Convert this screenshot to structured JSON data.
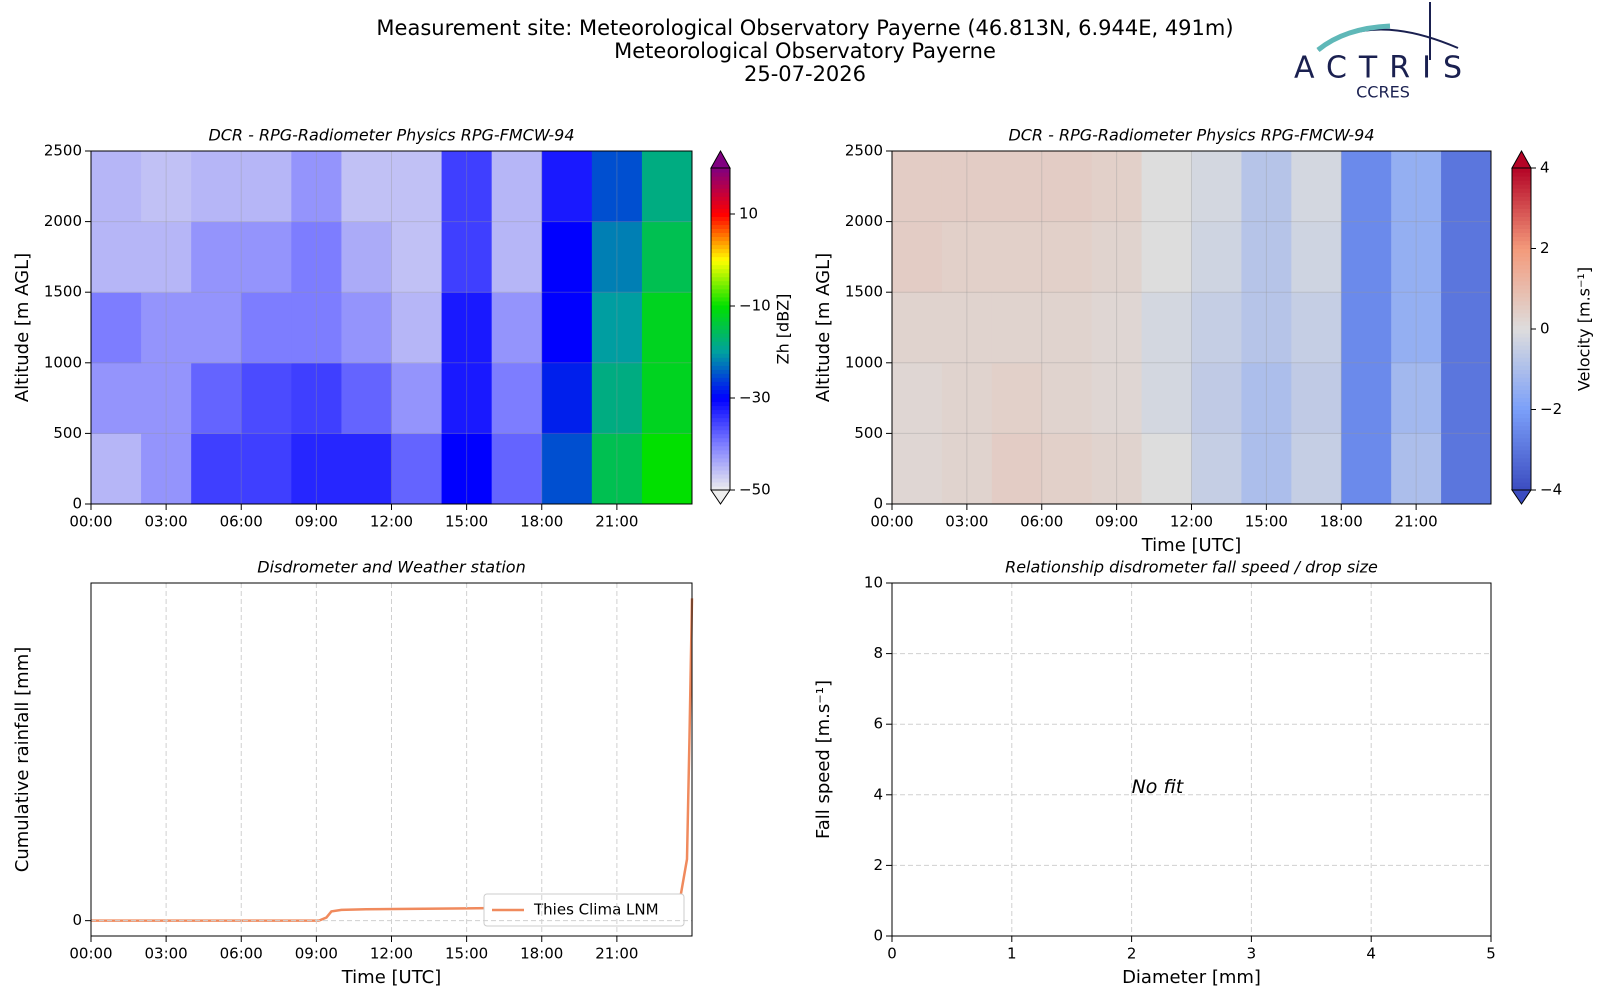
{
  "header": {
    "title_lines": [
      "Measurement site: Meteorological Observatory Payerne (46.813N, 6.944E, 491m)",
      "Meteorological Observatory Payerne",
      "25-07-2026"
    ]
  },
  "logo": {
    "name": "ACTRIS",
    "subtitle": "CCRES"
  },
  "chart_data": [
    {
      "type": "heatmap",
      "title": "DCR - RPG-Radiometer Physics RPG-FMCW-94",
      "y_label": "Altitude [m AGL]",
      "colorbar_label": "Zh [dBZ]",
      "colormap": "rainbow",
      "clim": [
        -50,
        20
      ],
      "cticks": [
        {
          "value": -50,
          "label": "−50"
        },
        {
          "value": -30,
          "label": "−30"
        },
        {
          "value": -10,
          "label": "−10"
        },
        10
      ],
      "xbins": [
        0,
        2,
        4,
        6,
        8,
        10,
        12,
        14,
        16,
        18,
        20,
        22,
        24
      ],
      "ybins": [
        0,
        500,
        1000,
        1500,
        2000,
        2500
      ],
      "z": [
        [
          -45,
          -42,
          -35,
          -35,
          -33,
          -33,
          -38,
          -30,
          -38,
          -25,
          -15,
          -10
        ],
        [
          -42,
          -42,
          -38,
          -36,
          -35,
          -38,
          -42,
          -32,
          -40,
          -28,
          -18,
          -12
        ],
        [
          -40,
          -42,
          -42,
          -40,
          -40,
          -42,
          -45,
          -32,
          -42,
          -30,
          -20,
          -12
        ],
        [
          -45,
          -45,
          -42,
          -42,
          -40,
          -44,
          -46,
          -35,
          -45,
          -30,
          -22,
          -15
        ],
        [
          -45,
          -46,
          -45,
          -45,
          -42,
          -46,
          -46,
          -35,
          -45,
          -32,
          -25,
          -18
        ]
      ],
      "xlim": [
        0,
        24
      ],
      "ylim": [
        0,
        2500
      ],
      "xticks": [
        {
          "value": 0,
          "label": "00:00"
        },
        {
          "value": 3,
          "label": "03:00"
        },
        {
          "value": 6,
          "label": "06:00"
        },
        {
          "value": 9,
          "label": "09:00"
        },
        {
          "value": 12,
          "label": "12:00"
        },
        {
          "value": 15,
          "label": "15:00"
        },
        {
          "value": 18,
          "label": "18:00"
        },
        {
          "value": 21,
          "label": "21:00"
        }
      ],
      "yticks": [
        0,
        500,
        1000,
        1500,
        2000,
        2500
      ],
      "grid": true
    },
    {
      "type": "heatmap",
      "title": "DCR - RPG-Radiometer Physics RPG-FMCW-94",
      "y_label": "Altitude [m AGL]",
      "x_label": "Time [UTC]",
      "colorbar_label": "Velocity [m.s⁻¹]",
      "colormap": "coolwarm",
      "clim": [
        -4,
        4
      ],
      "cticks": [
        {
          "value": -4,
          "label": "−4"
        },
        {
          "value": -2,
          "label": "−2"
        },
        0,
        2,
        4
      ],
      "xbins": [
        0,
        2,
        4,
        6,
        8,
        10,
        12,
        14,
        16,
        18,
        20,
        22,
        24
      ],
      "ybins": [
        0,
        500,
        1000,
        1500,
        2000,
        2500
      ],
      "z": [
        [
          0.2,
          0.3,
          0.5,
          0.4,
          0.3,
          0,
          -0.5,
          -1,
          -0.5,
          -2.5,
          -1,
          -3
        ],
        [
          0.2,
          0.3,
          0.4,
          0.3,
          0.2,
          -0.2,
          -0.6,
          -1,
          -0.6,
          -2.5,
          -1.2,
          -3
        ],
        [
          0.3,
          0.3,
          0.3,
          0.3,
          0.2,
          -0.2,
          -0.5,
          -0.8,
          -0.5,
          -2.5,
          -1.5,
          -3
        ],
        [
          0.5,
          0.4,
          0.4,
          0.4,
          0.3,
          0,
          -0.3,
          -0.8,
          -0.3,
          -2.5,
          -1.5,
          -3
        ],
        [
          0.5,
          0.5,
          0.5,
          0.5,
          0.4,
          0,
          -0.2,
          -0.8,
          -0.2,
          -2.5,
          -1.5,
          -3
        ]
      ],
      "xlim": [
        0,
        24
      ],
      "ylim": [
        0,
        2500
      ],
      "xticks": [
        {
          "value": 0,
          "label": "00:00"
        },
        {
          "value": 3,
          "label": "03:00"
        },
        {
          "value": 6,
          "label": "06:00"
        },
        {
          "value": 9,
          "label": "09:00"
        },
        {
          "value": 12,
          "label": "12:00"
        },
        {
          "value": 15,
          "label": "15:00"
        },
        {
          "value": 18,
          "label": "18:00"
        },
        {
          "value": 21,
          "label": "21:00"
        }
      ],
      "yticks": [
        0,
        500,
        1000,
        1500,
        2000,
        2500
      ],
      "grid": true
    },
    {
      "type": "line",
      "title": "Disdrometer and Weather station",
      "y_label": "Cumulative rainfall [mm]",
      "x_label": "Time [UTC]",
      "x": [
        0,
        9.1,
        9.4,
        9.6,
        10,
        11,
        15,
        20,
        23,
        23.5,
        23.8,
        23.9,
        24
      ],
      "series": [
        {
          "name": "Thies Clima LNM",
          "color": "#f08a5d",
          "values": [
            0,
            0,
            0.01,
            0.03,
            0.035,
            0.037,
            0.04,
            0.045,
            0.05,
            0.06,
            0.2,
            0.6,
            1.05
          ]
        }
      ],
      "xlim": [
        0,
        24
      ],
      "ylim": [
        -0.05,
        1.1
      ],
      "xticks": [
        {
          "value": 0,
          "label": "00:00"
        },
        {
          "value": 3,
          "label": "03:00"
        },
        {
          "value": 6,
          "label": "06:00"
        },
        {
          "value": 9,
          "label": "09:00"
        },
        {
          "value": 12,
          "label": "12:00"
        },
        {
          "value": 15,
          "label": "15:00"
        },
        {
          "value": 18,
          "label": "18:00"
        },
        {
          "value": 21,
          "label": "21:00"
        }
      ],
      "yticks": [
        0
      ],
      "grid": true,
      "legend": "lower right"
    },
    {
      "type": "scatter",
      "title": "Relationship disdrometer fall speed / drop size",
      "y_label": "Fall speed [m.s⁻¹]",
      "x_label": "Diameter [mm]",
      "annotation": "No fit",
      "xlim": [
        0,
        5
      ],
      "ylim": [
        0,
        10
      ],
      "xticks": [
        0,
        1,
        2,
        3,
        4,
        5
      ],
      "yticks": [
        0,
        2,
        4,
        6,
        8,
        10
      ],
      "grid": true
    }
  ]
}
